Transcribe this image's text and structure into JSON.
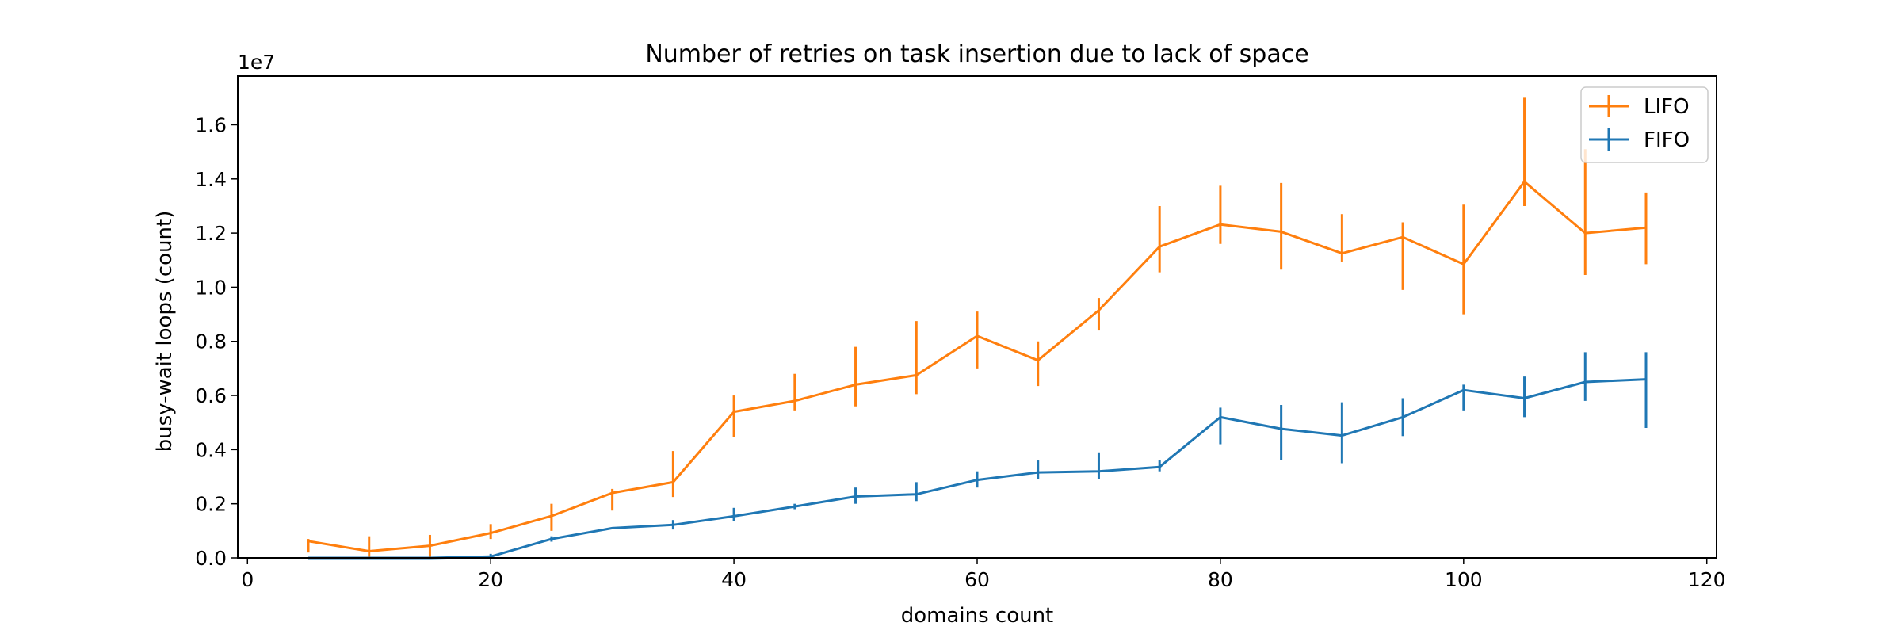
{
  "chart_data": {
    "type": "line",
    "title": "Number of retries on task insertion due to lack of space",
    "xlabel": "domains count",
    "ylabel": "busy-wait loops (count)",
    "y_offset_label": "1e7",
    "y_scale": 10000000,
    "xlim": [
      -0.8,
      120.8
    ],
    "ylim": [
      0,
      1.78
    ],
    "x_ticks": [
      0,
      20,
      40,
      60,
      80,
      100,
      120
    ],
    "y_ticks": [
      0.0,
      0.2,
      0.4,
      0.6,
      0.8,
      1.0,
      1.2,
      1.4,
      1.6
    ],
    "grid": false,
    "legend_position": "top-right",
    "x": [
      5,
      10,
      15,
      20,
      25,
      30,
      35,
      40,
      45,
      50,
      55,
      60,
      65,
      70,
      75,
      80,
      85,
      90,
      95,
      100,
      105,
      110,
      115
    ],
    "series": [
      {
        "name": "LIFO",
        "color": "#ff7f0e",
        "values": [
          0.062,
          0.025,
          0.045,
          0.092,
          0.155,
          0.24,
          0.28,
          0.54,
          0.58,
          0.64,
          0.675,
          0.82,
          0.73,
          0.915,
          1.15,
          1.232,
          1.205,
          1.125,
          1.185,
          1.085,
          1.39,
          1.2,
          1.22
        ],
        "err_low": [
          0.02,
          0.0,
          0.0,
          0.07,
          0.1,
          0.175,
          0.225,
          0.445,
          0.545,
          0.56,
          0.605,
          0.7,
          0.635,
          0.84,
          1.055,
          1.16,
          1.065,
          1.095,
          0.99,
          0.9,
          1.3,
          1.045,
          1.085
        ],
        "err_high": [
          0.07,
          0.08,
          0.085,
          0.125,
          0.2,
          0.255,
          0.395,
          0.6,
          0.68,
          0.78,
          0.875,
          0.91,
          0.8,
          0.96,
          1.3,
          1.375,
          1.385,
          1.27,
          1.24,
          1.305,
          1.7,
          1.51,
          1.35
        ]
      },
      {
        "name": "FIFO",
        "color": "#1f77b4",
        "values": [
          0.0,
          0.0,
          0.0,
          0.005,
          0.07,
          0.11,
          0.122,
          0.154,
          0.19,
          0.227,
          0.235,
          0.288,
          0.316,
          0.32,
          0.336,
          0.52,
          0.477,
          0.452,
          0.52,
          0.62,
          0.59,
          0.65,
          0.66
        ],
        "err_low": [
          0.0,
          0.0,
          0.0,
          0.0,
          0.06,
          0.11,
          0.105,
          0.135,
          0.18,
          0.2,
          0.21,
          0.26,
          0.29,
          0.29,
          0.32,
          0.42,
          0.36,
          0.35,
          0.45,
          0.545,
          0.52,
          0.58,
          0.48
        ],
        "err_high": [
          0.0,
          0.0,
          0.0,
          0.015,
          0.08,
          0.11,
          0.14,
          0.185,
          0.2,
          0.26,
          0.28,
          0.32,
          0.36,
          0.39,
          0.36,
          0.555,
          0.565,
          0.575,
          0.59,
          0.64,
          0.67,
          0.76,
          0.76
        ]
      }
    ]
  }
}
